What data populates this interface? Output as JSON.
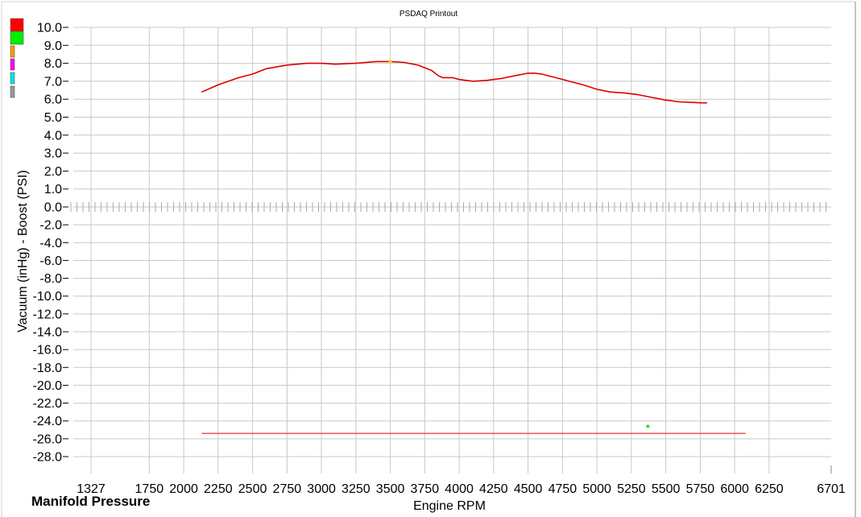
{
  "chart_data": {
    "type": "line",
    "title": "PSDAQ Printout",
    "xlabel": "Engine RPM",
    "ylabel": "Vacuum (inHg) - Boost (PSI)",
    "footer": "Manifold Pressure",
    "x_tick_labels": [
      "1327",
      "1750",
      "2000",
      "2250",
      "2500",
      "2750",
      "3000",
      "3250",
      "3500",
      "3750",
      "4000",
      "4250",
      "4500",
      "4750",
      "5000",
      "5250",
      "5500",
      "5750",
      "6000",
      "6250",
      "6701"
    ],
    "x_tick_values": [
      1327,
      1750,
      2000,
      2250,
      2500,
      2750,
      3000,
      3250,
      3500,
      3750,
      4000,
      4250,
      4500,
      4750,
      5000,
      5250,
      5500,
      5750,
      6000,
      6250,
      6701
    ],
    "xlim": [
      1327,
      6701
    ],
    "y_tick_labels": [
      "10.0",
      "9.0",
      "8.0",
      "7.0",
      "6.0",
      "5.0",
      "4.0",
      "3.0",
      "2.0",
      "1.0",
      "0.0",
      "-2.0",
      "-4.0",
      "-6.0",
      "-8.0",
      "-10.0",
      "-12.0",
      "-14.0",
      "-16.0",
      "-18.0",
      "-20.0",
      "-22.0",
      "-24.0",
      "-26.0",
      "-28.0"
    ],
    "ylim": [
      -28.0,
      10.0
    ],
    "grid": true,
    "legend_swatches": [
      "#ff0000",
      "#00ee00",
      "#ff9900",
      "#ff00ff",
      "#00e5ee",
      "#999999"
    ],
    "series": [
      {
        "color": "#dd0000",
        "x": [
          2130,
          2250,
          2400,
          2500,
          2600,
          2750,
          2900,
          3000,
          3100,
          3250,
          3400,
          3500,
          3600,
          3700,
          3800,
          3850,
          3880,
          3950,
          4000,
          4100,
          4200,
          4300,
          4400,
          4500,
          4550,
          4600,
          4700,
          4800,
          4900,
          5000,
          5100,
          5200,
          5300,
          5400,
          5500,
          5600,
          5700,
          5750,
          5800
        ],
        "y": [
          6.4,
          6.8,
          7.2,
          7.4,
          7.7,
          7.9,
          8.0,
          8.0,
          7.95,
          8.0,
          8.1,
          8.1,
          8.05,
          7.9,
          7.6,
          7.3,
          7.2,
          7.2,
          7.1,
          7.0,
          7.05,
          7.15,
          7.3,
          7.45,
          7.45,
          7.4,
          7.2,
          7.0,
          6.8,
          6.55,
          6.4,
          6.35,
          6.25,
          6.1,
          5.95,
          5.85,
          5.82,
          5.8,
          5.8
        ]
      },
      {
        "color": "#ee4444",
        "x": [
          2130,
          6080
        ],
        "y": [
          -25.4,
          -25.4
        ]
      }
    ],
    "markers": [
      {
        "color": "#ffcc00",
        "x": 3500,
        "y": 8.1
      },
      {
        "color": "#22dd22",
        "x": 5370,
        "y": -24.6
      }
    ]
  }
}
